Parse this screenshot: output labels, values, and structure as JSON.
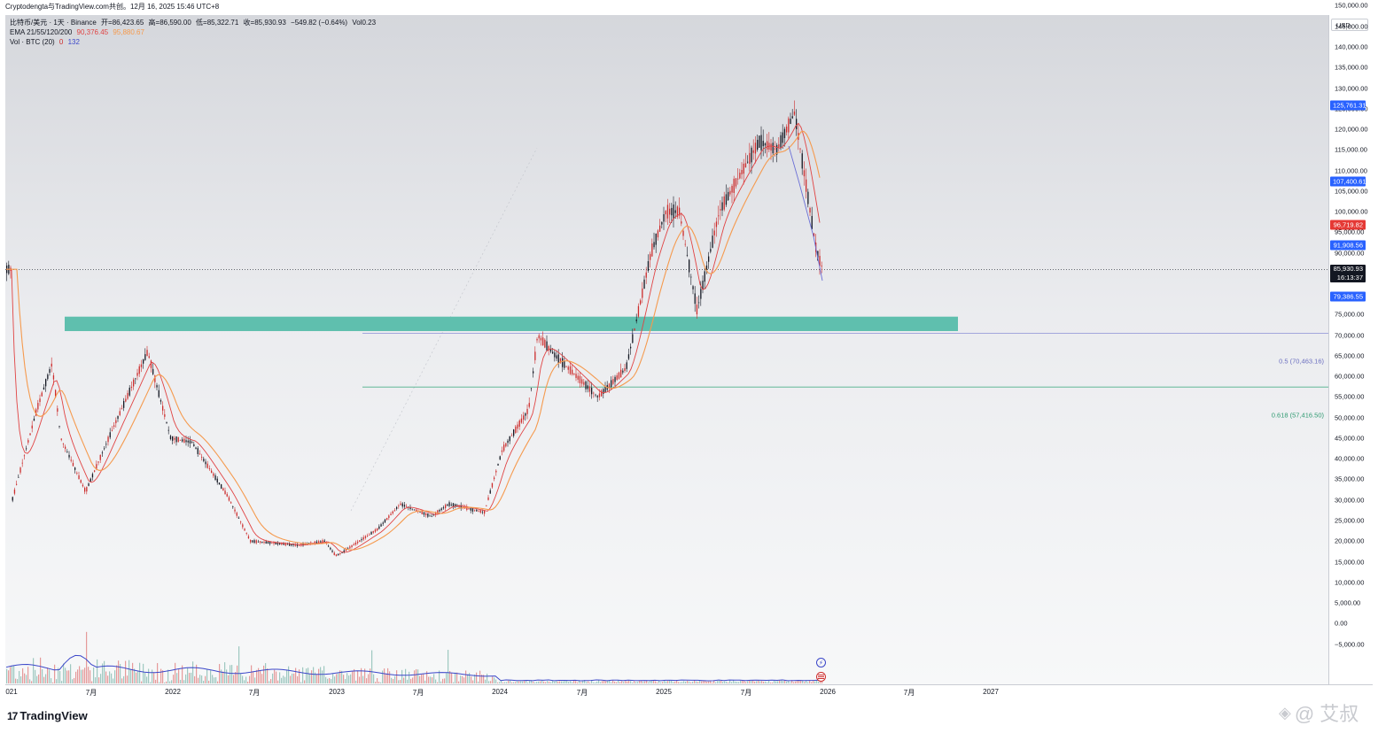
{
  "header": {
    "title": "Cryptodengta与TradingView.com共创。12月 16, 2025 15:46 UTC+8"
  },
  "legend": {
    "symbol_line": "比特币/美元 · 1天 · Binance",
    "open": "开=86,423.65",
    "high": "高=86,590.00",
    "low": "低=85,322.71",
    "close": "收=85,930.93",
    "change": "−549.82 (−0.64%)",
    "vol": "Vol0.23",
    "ema_label": "EMA 21/55/120/200",
    "ema_v1": "90,376.45",
    "ema_v2": "95,880.67",
    "vol_label": "Vol · BTC (20)",
    "vol_v1": "0",
    "vol_v2": "132"
  },
  "axis": {
    "currency": "USD",
    "y_ticks": [
      "150,000.00",
      "145,000.00",
      "140,000.00",
      "135,000.00",
      "130,000.00",
      "125,000.00",
      "120,000.00",
      "115,000.00",
      "110,000.00",
      "105,000.00",
      "100,000.00",
      "95,000.00",
      "90,000.00",
      "85,000.00",
      "80,000.00",
      "75,000.00",
      "70,000.00",
      "65,000.00",
      "60,000.00",
      "55,000.00",
      "50,000.00",
      "45,000.00",
      "40,000.00",
      "35,000.00",
      "30,000.00",
      "25,000.00",
      "20,000.00",
      "15,000.00",
      "10,000.00",
      "5,000.00",
      "0.00",
      "−5,000.00"
    ],
    "x_ticks": [
      "021",
      "7月",
      "2022",
      "7月",
      "2023",
      "7月",
      "2024",
      "7月",
      "2025",
      "7月",
      "2026",
      "7月",
      "2027"
    ]
  },
  "price_tags": {
    "high_tag": "125,761.31",
    "tag_107": "107,400.61",
    "tag_96": "96,719.82",
    "tag_91": "91,908.56",
    "current": "85,930.93",
    "countdown": "16:13:37",
    "tag_79": "79,386.55"
  },
  "fib": {
    "level_05": "0.5 (70,463.16)",
    "level_0618": "0.618 (57,416.50)"
  },
  "branding": {
    "logo": "TradingView",
    "watermark": "@ 艾叔"
  },
  "colors": {
    "up": "#131722",
    "down": "#cc2b2b",
    "ema_fast": "#e04343",
    "ema_slow": "#f59a4e",
    "zone": "#5fbfae",
    "fib05": "#8b8fd6",
    "fib0618": "#4caf8a",
    "current": "#131722"
  },
  "chart_data": {
    "type": "line",
    "title": "",
    "symbol": "BTC/USD",
    "interval": "1D",
    "ylim": [
      -5000,
      150000
    ],
    "x_ticks": [
      "021",
      "7月",
      "2022",
      "7月",
      "2023",
      "7月",
      "2024",
      "7月",
      "2025",
      "7月",
      "2026",
      "7月",
      "2027"
    ],
    "x": [
      "2021-01",
      "2021-03",
      "2021-04",
      "2021-05",
      "2021-07",
      "2021-09",
      "2021-11",
      "2022-01",
      "2022-03",
      "2022-05",
      "2022-06",
      "2022-09",
      "2022-11",
      "2022-12",
      "2023-01",
      "2023-03",
      "2023-04",
      "2023-06",
      "2023-08",
      "2023-10",
      "2023-12",
      "2024-02",
      "2024-03",
      "2024-05",
      "2024-08",
      "2024-10",
      "2024-11",
      "2024-12",
      "2025-02",
      "2025-04",
      "2025-05",
      "2025-07",
      "2025-08",
      "2025-10",
      "2025-11",
      "2025-12"
    ],
    "series": [
      {
        "values": [
          29000,
          52000,
          63000,
          45000,
          32000,
          47000,
          66000,
          45000,
          44000,
          31000,
          20000,
          19000,
          20000,
          16500,
          17000,
          23000,
          29000,
          26000,
          29000,
          27000,
          42000,
          52000,
          70000,
          65000,
          55000,
          62000,
          90000,
          100000,
          100000,
          76000,
          100000,
          117000,
          115000,
          124000,
          90000,
          86000
        ]
      }
    ],
    "zone": {
      "low": 71000,
      "high": 74500
    },
    "fib_levels": [
      70463.16,
      57416.5
    ],
    "current_price": 85930.93
  }
}
